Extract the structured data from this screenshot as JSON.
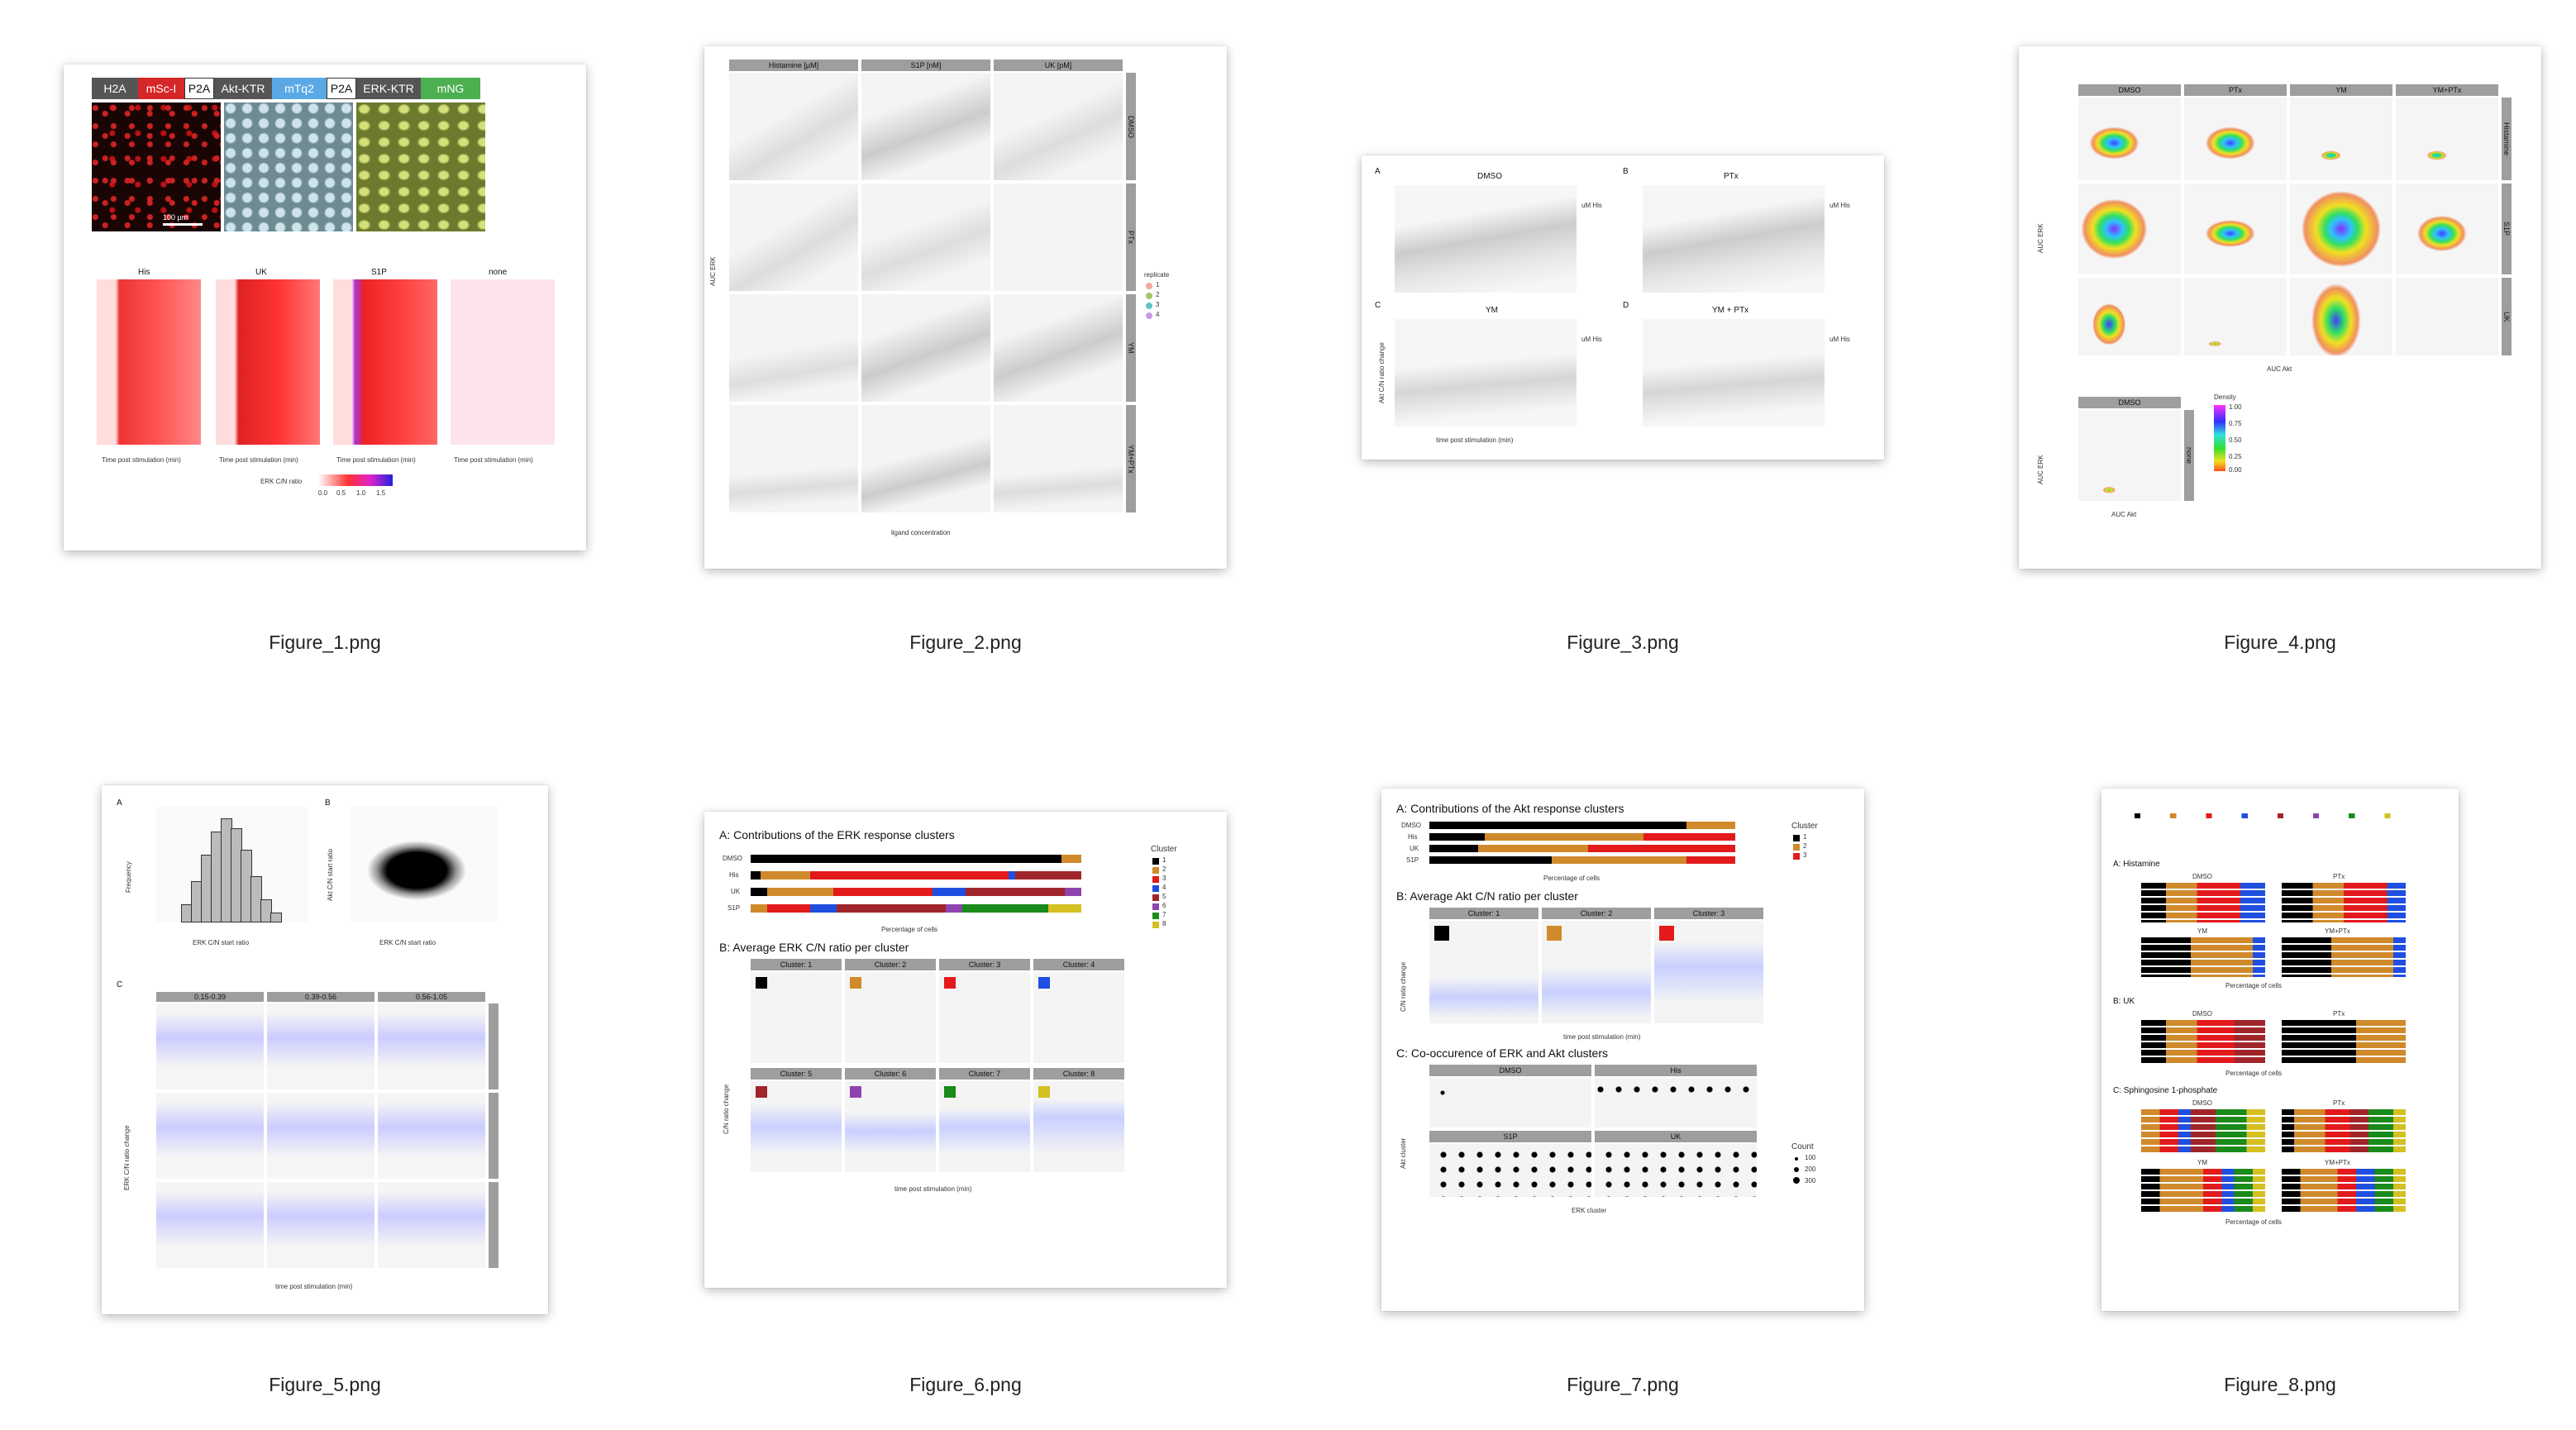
{
  "files": [
    {
      "name": "Figure_1.png",
      "icon": "image-file-icon"
    },
    {
      "name": "Figure_2.png",
      "icon": "image-file-icon"
    },
    {
      "name": "Figure_3.png",
      "icon": "image-file-icon"
    },
    {
      "name": "Figure_4.png",
      "icon": "image-file-icon"
    },
    {
      "name": "Figure_5.png",
      "icon": "image-file-icon"
    },
    {
      "name": "Figure_6.png",
      "icon": "image-file-icon"
    },
    {
      "name": "Figure_7.png",
      "icon": "image-file-icon"
    },
    {
      "name": "Figure_8.png",
      "icon": "image-file-icon"
    }
  ],
  "fig1": {
    "construct": [
      "H2A",
      "mSc-I",
      "P2A",
      "Akt-KTR",
      "mTq2",
      "P2A",
      "ERK-KTR",
      "mNG"
    ],
    "construct_colors": [
      "#555555",
      "#d62728",
      "#ffffff",
      "#555555",
      "#5aa9e6",
      "#ffffff",
      "#555555",
      "#4caf50"
    ],
    "scale": "100 µm",
    "heat_titles": [
      "His",
      "UK",
      "S1P",
      "none"
    ],
    "xlabel": "Time post stimulation (min)",
    "legend_title": "ERK C/N ratio",
    "legend_ticks": [
      "0.0",
      "0.5",
      "1.0",
      "1.5"
    ]
  },
  "fig2": {
    "cols": [
      "Histamine [µM]",
      "S1P [nM]",
      "UK [pM]"
    ],
    "rows": [
      "DMSO",
      "PTx",
      "YM",
      "YM+PTx"
    ],
    "ylabel": "AUC ERK",
    "xlabel": "ligand concentration",
    "legend_title": "replicate",
    "legend": [
      "1",
      "2",
      "3",
      "4"
    ]
  },
  "fig3": {
    "panels": [
      "DMSO",
      "PTx",
      "YM",
      "YM + PTx"
    ],
    "letters": [
      "A",
      "B",
      "C",
      "D"
    ],
    "ylabel": "Akt C/N ratio change",
    "xlabel": "time post stimulation (min)",
    "legend_title": "uM His"
  },
  "fig4": {
    "cols": [
      "DMSO",
      "PTx",
      "YM",
      "YM+PTx"
    ],
    "rows": [
      "Histamine",
      "S1P",
      "UK"
    ],
    "ylabel": "AUC ERK",
    "xlabel": "AUC Akt",
    "b_col": "DMSO",
    "b_row": "none",
    "legend_title": "Density",
    "legend_ticks": [
      "1.00",
      "0.75",
      "0.50",
      "0.25",
      "0.00"
    ]
  },
  "fig5": {
    "hist_xlabel": "ERK C/N start ratio",
    "hist_ylabel": "Frequency",
    "scatter_xlabel": "ERK C/N start ratio",
    "scatter_ylabel": "Akt C/N start ratio",
    "strips": [
      "0.15-0.39",
      "0.39-0.56",
      "0.56-1.05"
    ],
    "ylabel": "ERK C/N ratio change",
    "xlabel": "time post stimulation (min)"
  },
  "fig6": {
    "title_a": "A:  Contributions of the ERK response clusters",
    "title_b": "B:  Average ERK C/N ratio per cluster",
    "rows": [
      "DMSO",
      "His",
      "UK",
      "S1P"
    ],
    "xlabel_a": "Percentage of cells",
    "legend_title": "Cluster",
    "clusters": [
      "1",
      "2",
      "3",
      "4",
      "5",
      "6",
      "7",
      "8"
    ],
    "cluster_colors": [
      "#000000",
      "#d08a2b",
      "#e31a1c",
      "#1f4fe0",
      "#a0252b",
      "#8e44ad",
      "#1a8a1a",
      "#d4c020"
    ],
    "strips": [
      "Cluster: 1",
      "Cluster: 2",
      "Cluster: 3",
      "Cluster: 4",
      "Cluster: 5",
      "Cluster: 6",
      "Cluster: 7",
      "Cluster: 8"
    ],
    "ylabel": "C/N ratio change",
    "xlabel_b": "time post stimulation (min)"
  },
  "fig7": {
    "title_a": "A:  Contributions of the Akt response clusters",
    "title_b": "B:  Average Akt C/N ratio per cluster",
    "title_c": "C:  Co-occurence of ERK and Akt clusters",
    "rows": [
      "DMSO",
      "His",
      "UK",
      "S1P"
    ],
    "legend_title": "Cluster",
    "clusters": [
      "1",
      "2",
      "3"
    ],
    "strips": [
      "Cluster: 1",
      "Cluster: 2",
      "Cluster: 3"
    ],
    "c_panels": [
      "DMSO",
      "His",
      "S1P",
      "UK"
    ],
    "count_title": "Count",
    "counts": [
      "100",
      "200",
      "300"
    ],
    "xlabel_a": "Percentage of cells",
    "xlabel_b": "time post stimulation (min)",
    "xlabel_c": "ERK cluster",
    "ylabel_c": "Akt cluster",
    "ylabel_b": "C/N ratio change"
  },
  "fig8": {
    "sections": [
      "A:  Histamine",
      "B:  UK",
      "C:  Sphingosine 1-phosphate"
    ],
    "sub": [
      "DMSO",
      "PTx",
      "YM",
      "YM+PTx"
    ],
    "xlabel": "Percentage of cells"
  }
}
